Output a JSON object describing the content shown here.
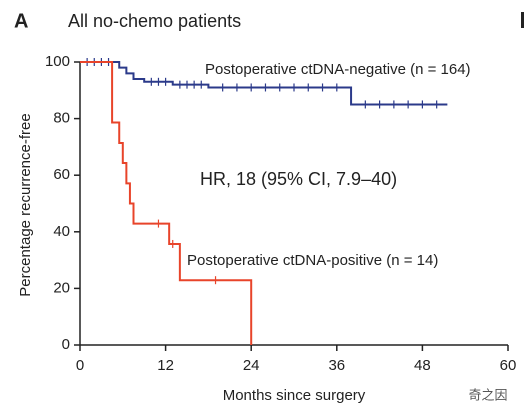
{
  "panel_label": "A",
  "chart_data": {
    "type": "step",
    "title": "All no-chemo patients",
    "xlabel": "Months since surgery",
    "ylabel": "Percentage recurrence-free",
    "annotation": "HR, 18 (95% CI, 7.9–40)",
    "xlim": [
      0,
      60
    ],
    "ylim": [
      0,
      100
    ],
    "xticks": [
      0,
      12,
      24,
      36,
      48,
      60
    ],
    "yticks": [
      0,
      20,
      40,
      60,
      80,
      100
    ],
    "grid": false,
    "series": [
      {
        "name": "Postoperative ctDNA-negative (n = 164)",
        "color": "#2b3a8a",
        "x": [
          0,
          5.5,
          6.5,
          7.5,
          9,
          13,
          18,
          38,
          51.5
        ],
        "values": [
          100,
          98,
          96,
          94,
          93,
          92,
          91,
          85,
          85
        ],
        "censor_x": [
          1,
          2,
          3,
          4,
          10,
          11,
          12,
          14,
          15,
          16,
          17,
          20,
          22,
          24,
          26,
          28,
          30,
          32,
          34,
          36,
          40,
          42,
          44,
          46,
          48,
          50
        ],
        "censor_y": [
          100,
          100,
          100,
          100,
          93,
          93,
          93,
          92,
          92,
          92,
          92,
          91,
          91,
          91,
          91,
          91,
          91,
          91,
          91,
          91,
          85,
          85,
          85,
          85,
          85,
          85
        ]
      },
      {
        "name": "Postoperative ctDNA-positive (n = 14)",
        "color": "#e8442a",
        "x": [
          0,
          4.5,
          5.5,
          6,
          6.5,
          7,
          7.5,
          12.5,
          14,
          24
        ],
        "values": [
          100,
          78.6,
          71.4,
          64.3,
          57.1,
          50,
          42.9,
          35.7,
          22.9,
          0
        ],
        "censor_x": [
          11,
          13,
          19
        ],
        "censor_y": [
          42.9,
          35.7,
          22.9
        ]
      }
    ]
  },
  "watermark": "奇之因"
}
